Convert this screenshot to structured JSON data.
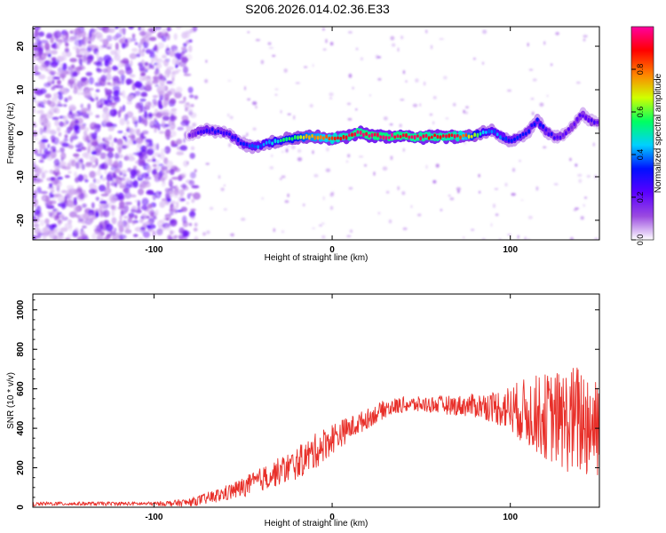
{
  "title": "S206.2026.014.02.36.E33",
  "colors": {
    "snr_line": "#e8302a",
    "axis": "#000000",
    "background": "#ffffff"
  },
  "chart_data": [
    {
      "type": "heatmap",
      "title": "",
      "xlabel": "Height of straight line (km)",
      "ylabel": "Frequency (Hz)",
      "xlim": [
        -168,
        150
      ],
      "ylim": [
        -24.5,
        24.5
      ],
      "x_ticks": [
        -100,
        0,
        100
      ],
      "y_ticks": [
        -20,
        -10,
        0,
        10,
        20
      ],
      "colorbar": {
        "label": "Normalized spectral amplitude",
        "range": [
          0,
          1
        ],
        "ticks": [
          "0.0",
          "0.2",
          "0.4",
          "0.6",
          "0.8"
        ],
        "tick_values": [
          0.0,
          0.2,
          0.4,
          0.6,
          0.8
        ],
        "colors": [
          "#ffffff",
          "#9a4ae0",
          "#5a00ff",
          "#0010ff",
          "#00d0ff",
          "#00ff60",
          "#d0ff00",
          "#ff8000",
          "#ff0000",
          "#ff00a0"
        ]
      },
      "noise_region_x": [
        -168,
        -82
      ],
      "ridge": {
        "x": [
          -80,
          -75,
          -70,
          -65,
          -60,
          -55,
          -50,
          -45,
          -40,
          -35,
          -30,
          -25,
          -20,
          -15,
          -10,
          -5,
          0,
          5,
          10,
          15,
          20,
          25,
          30,
          35,
          40,
          45,
          50,
          55,
          60,
          65,
          70,
          75,
          80,
          85,
          90,
          95,
          100,
          105,
          110,
          115,
          120,
          125,
          130,
          135,
          140,
          145,
          150
        ],
        "frequency": [
          -0.5,
          0.3,
          0.8,
          0.5,
          0.2,
          -1.0,
          -2.5,
          -3.0,
          -2.8,
          -2.2,
          -1.8,
          -1.4,
          -1.0,
          -0.8,
          -0.9,
          -1.0,
          -1.2,
          -1.0,
          -0.6,
          0.2,
          -0.4,
          -0.6,
          -0.8,
          -0.7,
          -0.6,
          -0.8,
          -0.9,
          -0.8,
          -0.7,
          -0.7,
          -0.7,
          -0.6,
          -0.6,
          0.2,
          0.6,
          -0.8,
          -1.8,
          -1.0,
          0.5,
          3.0,
          0.5,
          -1.0,
          -0.5,
          1.5,
          4.5,
          3.0,
          2.0
        ],
        "amplitude": [
          0.15,
          0.25,
          0.3,
          0.28,
          0.25,
          0.3,
          0.32,
          0.35,
          0.4,
          0.45,
          0.5,
          0.55,
          0.6,
          0.7,
          0.75,
          0.8,
          0.85,
          0.88,
          0.92,
          0.95,
          0.96,
          0.97,
          0.97,
          0.96,
          0.95,
          0.94,
          0.93,
          0.92,
          0.92,
          0.91,
          0.9,
          0.8,
          0.6,
          0.45,
          0.4,
          0.38,
          0.35,
          0.3,
          0.28,
          0.35,
          0.3,
          0.25,
          0.22,
          0.2,
          0.25,
          0.22,
          0.18
        ]
      }
    },
    {
      "type": "line",
      "title": "",
      "xlabel": "Height of straight line (km)",
      "ylabel": "SNR (10 * v/v)",
      "xlim": [
        -168,
        150
      ],
      "ylim": [
        0,
        1080
      ],
      "x_ticks": [
        -100,
        0,
        100
      ],
      "y_ticks": [
        0,
        200,
        400,
        600,
        800,
        1000
      ],
      "series": [
        {
          "name": "SNR",
          "color": "#e8302a",
          "x": [
            -168,
            -160,
            -150,
            -140,
            -130,
            -120,
            -110,
            -100,
            -90,
            -80,
            -70,
            -60,
            -50,
            -40,
            -30,
            -20,
            -10,
            0,
            10,
            20,
            30,
            40,
            50,
            60,
            70,
            80,
            90,
            100,
            110,
            120,
            130,
            140,
            150
          ],
          "mean": [
            15,
            18,
            18,
            18,
            18,
            18,
            18,
            18,
            20,
            25,
            45,
            70,
            100,
            140,
            180,
            220,
            280,
            350,
            400,
            450,
            500,
            520,
            520,
            520,
            515,
            515,
            510,
            500,
            480,
            460,
            440,
            440,
            430
          ],
          "spread": [
            10,
            10,
            10,
            10,
            10,
            10,
            10,
            10,
            15,
            20,
            30,
            40,
            50,
            60,
            70,
            80,
            90,
            80,
            60,
            50,
            45,
            40,
            40,
            45,
            50,
            60,
            80,
            120,
            180,
            220,
            260,
            300,
            300
          ]
        }
      ]
    }
  ]
}
